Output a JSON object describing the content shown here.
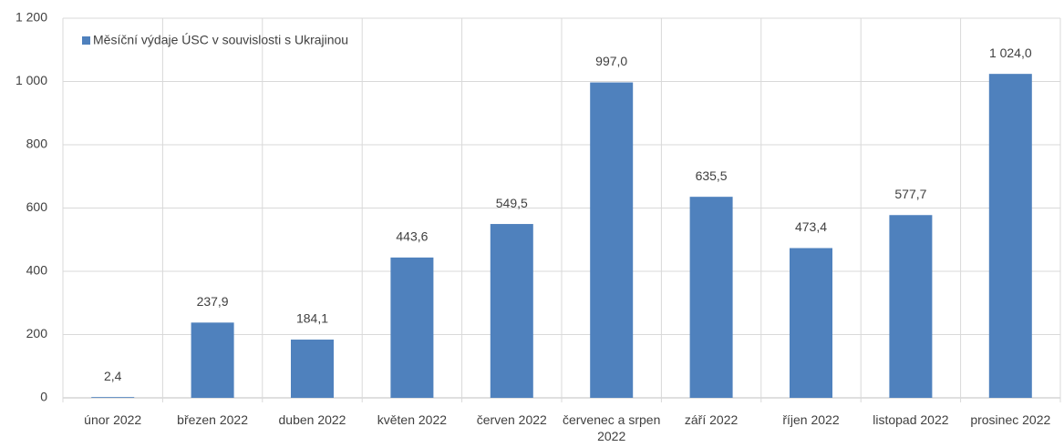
{
  "chart_data": {
    "type": "bar",
    "categories": [
      "únor 2022",
      "březen 2022",
      "duben 2022",
      "květen 2022",
      "červen 2022",
      "červenec a srpen 2022",
      "září 2022",
      "říjen 2022",
      "listopad 2022",
      "prosinec 2022"
    ],
    "series": [
      {
        "name": "Měsíční výdaje ÚSC v souvislosti s Ukrajinou",
        "color": "#4f81bd",
        "values": [
          2.4,
          237.9,
          184.1,
          443.6,
          549.5,
          997.0,
          635.5,
          473.4,
          577.7,
          1024.0
        ],
        "value_labels": [
          "2,4",
          "237,9",
          "184,1",
          "443,6",
          "549,5",
          "997,0",
          "635,5",
          "473,4",
          "577,7",
          "1 024,0"
        ]
      }
    ],
    "ylim": [
      0,
      1200
    ],
    "yticks": [
      0,
      200,
      400,
      600,
      800,
      {
        "value": 1000,
        "label": "1 000"
      },
      {
        "value": 1200,
        "label": "1 200"
      }
    ],
    "grid": true,
    "legend": "top-left"
  }
}
